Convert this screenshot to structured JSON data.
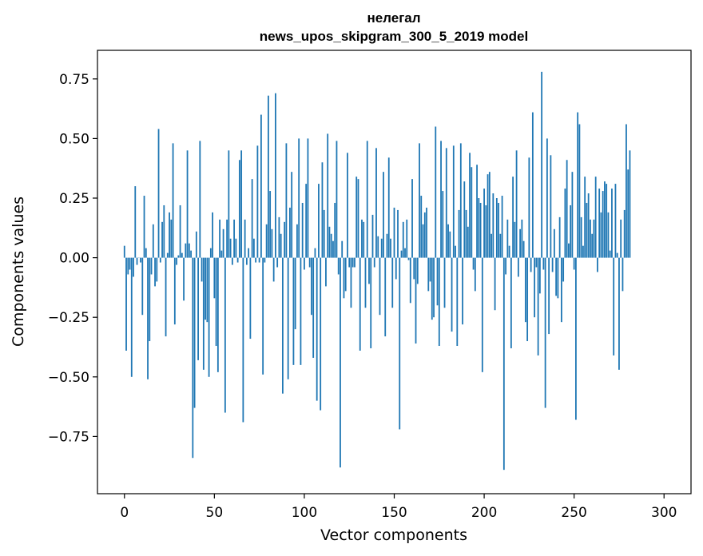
{
  "chart_data": {
    "type": "bar",
    "title": "нелегал",
    "subtitle": "news_upos_skipgram_300_5_2019 model",
    "xlabel": "Vector components",
    "ylabel": "Components values",
    "xlim": [
      -15,
      315
    ],
    "ylim": [
      -0.99,
      0.87
    ],
    "xticks": [
      0,
      50,
      100,
      150,
      200,
      250,
      300
    ],
    "yticks": [
      -0.75,
      -0.5,
      -0.25,
      0.0,
      0.25,
      0.5,
      0.75
    ],
    "ytick_labels": [
      "−0.75",
      "−0.50",
      "−0.25",
      "0.00",
      "0.25",
      "0.50",
      "0.75"
    ],
    "bar_color": "#1f77b4",
    "x": "0..299",
    "values": [
      0.05,
      -0.39,
      -0.07,
      -0.05,
      -0.5,
      -0.08,
      0.3,
      -0.03,
      0.0,
      -0.02,
      -0.24,
      0.26,
      0.04,
      -0.51,
      -0.35,
      -0.07,
      0.14,
      -0.12,
      -0.1,
      0.54,
      -0.02,
      0.15,
      0.22,
      -0.33,
      0.02,
      0.19,
      0.16,
      0.48,
      -0.28,
      -0.03,
      0.01,
      0.22,
      0.02,
      -0.18,
      0.06,
      0.45,
      0.06,
      0.03,
      -0.84,
      -0.63,
      0.11,
      -0.43,
      0.49,
      -0.1,
      -0.47,
      -0.26,
      -0.27,
      -0.5,
      0.04,
      0.19,
      -0.17,
      -0.37,
      -0.48,
      0.16,
      0.03,
      0.12,
      -0.65,
      0.16,
      0.45,
      0.08,
      -0.03,
      0.16,
      0.08,
      -0.02,
      0.41,
      0.45,
      -0.69,
      0.16,
      -0.03,
      0.04,
      -0.34,
      0.33,
      0.08,
      -0.02,
      0.47,
      -0.02,
      0.6,
      -0.49,
      -0.02,
      0.14,
      0.68,
      0.28,
      0.12,
      -0.1,
      0.69,
      -0.04,
      0.17,
      0.1,
      -0.57,
      0.15,
      0.48,
      -0.51,
      0.21,
      0.36,
      -0.45,
      -0.3,
      0.14,
      0.5,
      -0.45,
      0.23,
      -0.05,
      0.31,
      0.5,
      -0.04,
      -0.24,
      -0.42,
      0.04,
      -0.6,
      0.31,
      -0.64,
      0.4,
      0.2,
      -0.12,
      0.52,
      0.13,
      0.1,
      0.07,
      0.23,
      0.49,
      -0.07,
      -0.88,
      0.07,
      -0.17,
      -0.14,
      0.44,
      -0.04,
      -0.21,
      -0.04,
      -0.04,
      0.34,
      0.33,
      -0.39,
      0.16,
      0.15,
      -0.21,
      0.49,
      -0.11,
      -0.38,
      0.18,
      -0.04,
      0.46,
      0.09,
      -0.24,
      0.08,
      0.36,
      -0.33,
      0.1,
      0.42,
      0.08,
      -0.21,
      0.21,
      -0.09,
      0.2,
      -0.72,
      0.03,
      0.15,
      0.04,
      0.16,
      -0.01,
      -0.19,
      0.33,
      -0.09,
      -0.36,
      -0.11,
      0.48,
      0.26,
      0.14,
      0.19,
      0.21,
      -0.14,
      -0.1,
      -0.26,
      -0.25,
      0.55,
      -0.2,
      -0.37,
      0.49,
      0.28,
      -0.21,
      0.46,
      0.14,
      0.11,
      -0.31,
      0.47,
      0.05,
      -0.37,
      0.2,
      0.48,
      -0.28,
      0.32,
      0.2,
      0.13,
      0.44,
      0.38,
      -0.05,
      -0.14,
      0.39,
      0.25,
      0.23,
      -0.48,
      0.29,
      0.22,
      0.35,
      0.36,
      0.1,
      0.27,
      -0.22,
      0.25,
      0.23,
      0.1,
      0.26,
      -0.89,
      -0.07,
      0.16,
      0.05,
      -0.38,
      0.34,
      0.15,
      0.45,
      -0.08,
      0.12,
      0.16,
      0.07,
      -0.27,
      -0.35,
      0.42,
      -0.06,
      0.61,
      -0.25,
      -0.04,
      -0.41,
      -0.15,
      0.78,
      -0.05,
      -0.63,
      0.5,
      -0.32,
      0.43,
      -0.06,
      0.12,
      -0.16,
      -0.17,
      0.17,
      -0.27,
      -0.1,
      0.29,
      0.41,
      0.06,
      0.22,
      0.36,
      -0.05,
      -0.68,
      0.61,
      0.56,
      0.17,
      0.05,
      0.34,
      0.23,
      0.27,
      0.16,
      0.1,
      0.16,
      0.34,
      -0.06,
      0.29,
      0.19,
      0.28,
      0.32,
      0.31,
      0.19,
      0.03,
      0.29,
      -0.41,
      0.31,
      0.02,
      -0.47,
      0.16,
      -0.14,
      0.2,
      0.56,
      0.37,
      0.45
    ]
  }
}
